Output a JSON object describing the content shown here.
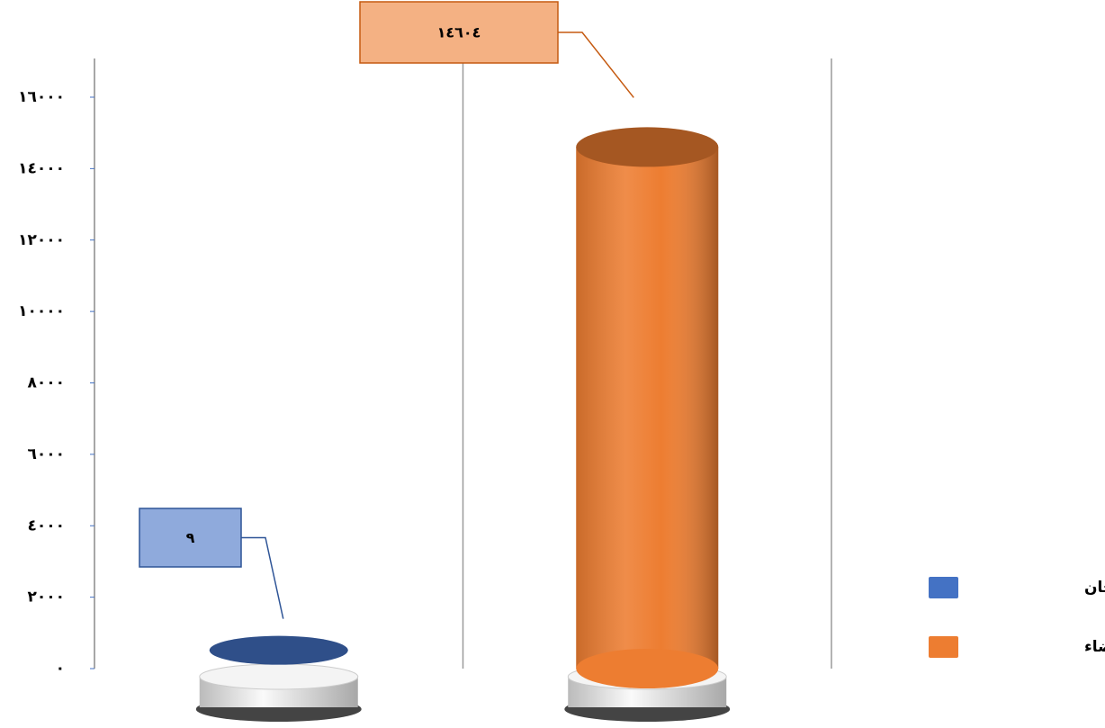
{
  "chart_data": {
    "type": "cylinder-bar",
    "categories": [
      null,
      null
    ],
    "series": [
      {
        "name": "عدد اللجان",
        "color": "#4472c4",
        "values": [
          9,
          null
        ],
        "value_labels": [
          "٩",
          null
        ]
      },
      {
        "name": "عدد الاعضاء",
        "color": "#ed7d31",
        "values": [
          null,
          14604
        ],
        "value_labels": [
          null,
          "١٤٦٠٤"
        ]
      }
    ],
    "ylim": [
      0,
      16000
    ],
    "yticks": [
      {
        "value": 0,
        "label": "٠"
      },
      {
        "value": 2000,
        "label": "٢٠٠٠"
      },
      {
        "value": 4000,
        "label": "٤٠٠٠"
      },
      {
        "value": 6000,
        "label": "٦٠٠٠"
      },
      {
        "value": 8000,
        "label": "٨٠٠٠"
      },
      {
        "value": 10000,
        "label": "١٠٠٠٠"
      },
      {
        "value": 12000,
        "label": "١٢٠٠٠"
      },
      {
        "value": 14000,
        "label": "١٤٠٠٠"
      },
      {
        "value": 16000,
        "label": "١٦٠٠٠"
      }
    ],
    "grid": true,
    "legend": "right"
  }
}
